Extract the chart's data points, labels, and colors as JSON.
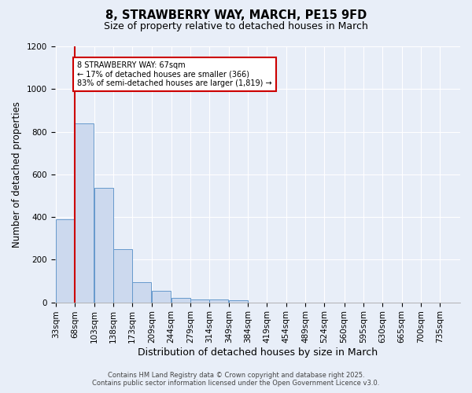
{
  "title_line1": "8, STRAWBERRY WAY, MARCH, PE15 9FD",
  "title_line2": "Size of property relative to detached houses in March",
  "xlabel": "Distribution of detached houses by size in March",
  "ylabel": "Number of detached properties",
  "bins": [
    33,
    68,
    103,
    138,
    173,
    209,
    244,
    279,
    314,
    349,
    384,
    419,
    454,
    489,
    524,
    560,
    595,
    630,
    665,
    700,
    735
  ],
  "bar_heights": [
    390,
    840,
    535,
    248,
    93,
    55,
    22,
    15,
    12,
    8,
    0,
    0,
    0,
    0,
    0,
    0,
    0,
    0,
    0,
    0
  ],
  "bar_color": "#ccd9ee",
  "bar_edge_color": "#6699cc",
  "property_size": 67,
  "red_line_color": "#cc0000",
  "ylim": [
    0,
    1200
  ],
  "yticks": [
    0,
    200,
    400,
    600,
    800,
    1000,
    1200
  ],
  "annotation_text": "8 STRAWBERRY WAY: 67sqm\n← 17% of detached houses are smaller (366)\n83% of semi-detached houses are larger (1,819) →",
  "annotation_box_color": "#ffffff",
  "annotation_box_edge": "#cc0000",
  "footer_line1": "Contains HM Land Registry data © Crown copyright and database right 2025.",
  "footer_line2": "Contains public sector information licensed under the Open Government Licence v3.0.",
  "bg_color": "#e8eef8",
  "grid_color": "#ffffff",
  "title_fontsize": 10.5,
  "subtitle_fontsize": 9,
  "axis_label_fontsize": 8.5,
  "tick_fontsize": 7.5,
  "annotation_fontsize": 7,
  "footer_fontsize": 6
}
